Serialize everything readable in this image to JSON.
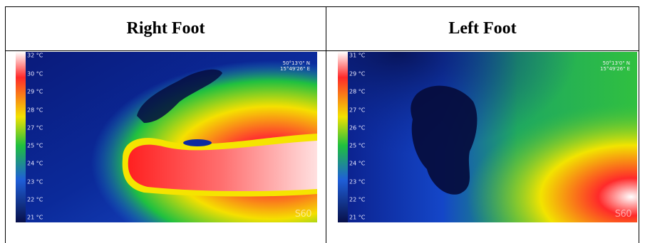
{
  "table": {
    "columns": [
      {
        "title": "Right Foot",
        "coords": {
          "lat": "50°13'0\" N",
          "lon": "15°49'26\" E"
        },
        "scale_labels": [
          "32 °C",
          "30 °C",
          "29 °C",
          "28 °C",
          "27 °C",
          "25 °C",
          "24 °C",
          "23 °C",
          "22 °C",
          "21 °C"
        ],
        "logo": "S60"
      },
      {
        "title": "Left Foot",
        "coords": {
          "lat": "50°13'0\" N",
          "lon": "15°49'26\" E"
        },
        "scale_labels": [
          "31 °C",
          "29 °C",
          "28 °C",
          "27 °C",
          "26 °C",
          "25 °C",
          "24 °C",
          "23 °C",
          "22 °C",
          "21 °C"
        ],
        "logo": "S60"
      }
    ]
  }
}
